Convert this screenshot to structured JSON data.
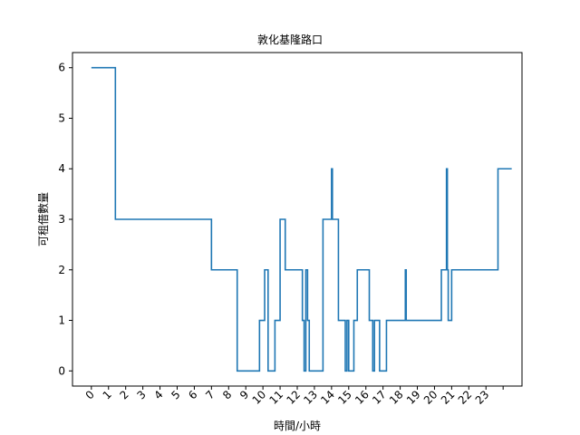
{
  "chart_data": {
    "type": "line",
    "title": "敦化基隆路口",
    "xlabel": "時間/小時",
    "ylabel": "可租借數量",
    "x_ticks": [
      "0",
      "1",
      "2",
      "3",
      "4",
      "5",
      "6",
      "7",
      "8",
      "9",
      "10",
      "11",
      "12",
      "13",
      "14",
      "15",
      "16",
      "17",
      "18",
      "19",
      "20",
      "21",
      "22",
      "23",
      ""
    ],
    "y_ticks": [
      0,
      1,
      2,
      3,
      4,
      5,
      6
    ],
    "xlim": [
      -1.1,
      25.1
    ],
    "ylim": [
      -0.3,
      6.3
    ],
    "grid": false,
    "series": [
      {
        "color": "#1f77b4",
        "step": "post",
        "x": [
          0,
          1.4,
          7.0,
          8.5,
          9.8,
          10.1,
          10.3,
          10.7,
          11.0,
          11.3,
          12.3,
          12.4,
          12.5,
          12.6,
          12.7,
          12.9,
          13.5,
          14.0,
          14.05,
          14.1,
          14.4,
          14.8,
          14.9,
          15.0,
          15.3,
          15.5,
          16.2,
          16.4,
          16.5,
          16.8,
          17.2,
          17.4,
          18.3,
          18.35,
          18.4,
          20.4,
          20.7,
          20.75,
          20.8,
          21.0,
          23.7,
          24.5
        ],
        "y": [
          6,
          3,
          2,
          0,
          1,
          2,
          0,
          1,
          3,
          2,
          1,
          0,
          2,
          1,
          0,
          0,
          3,
          4,
          3,
          3,
          1,
          0,
          1,
          0,
          1,
          2,
          1,
          0,
          1,
          0,
          1,
          1,
          2,
          1,
          1,
          2,
          4,
          2,
          1,
          2,
          4,
          4
        ]
      }
    ]
  }
}
